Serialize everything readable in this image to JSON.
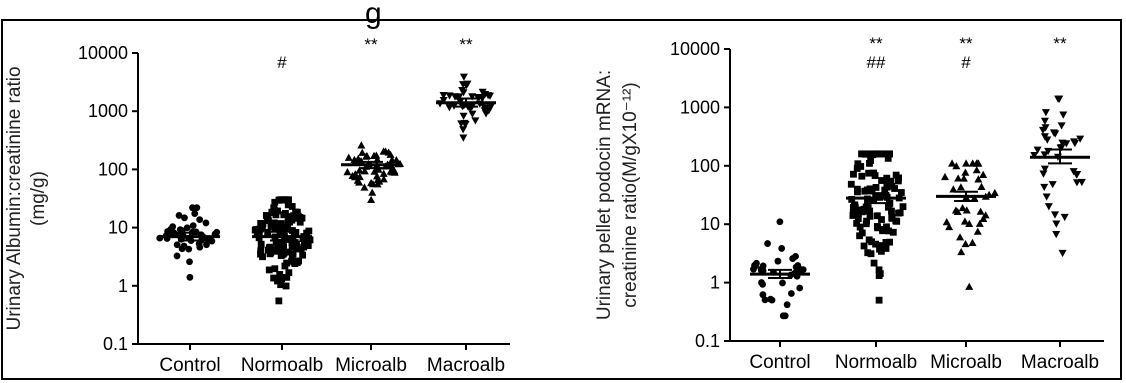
{
  "figure": {
    "partial_title": "g"
  },
  "chart_data": [
    {
      "type": "scatter",
      "subtype": "dot-plot",
      "ylabel_lines": [
        "Urinary Albumin:creatinine ratio",
        "(mg/g)"
      ],
      "yscale": "log",
      "ylim": [
        0.1,
        10000
      ],
      "yticks": [
        "0.1",
        "1",
        "10",
        "100",
        "1000",
        "10000"
      ],
      "categories": [
        "Control",
        "Normoalb",
        "Microalb",
        "Macroalb"
      ],
      "groups": [
        {
          "category": "Control",
          "marker": "circle",
          "mean": 7,
          "sem_low": 6,
          "sem_high": 8.2,
          "range": [
            1.4,
            22
          ],
          "n": 45,
          "annotations": []
        },
        {
          "category": "Normoalb",
          "marker": "square",
          "mean": 7,
          "sem_low": 6,
          "sem_high": 8.5,
          "range": [
            0.55,
            30
          ],
          "n": 140,
          "annotations": [
            "#"
          ]
        },
        {
          "category": "Microalb",
          "marker": "triangle",
          "mean": 120,
          "sem_low": 105,
          "sem_high": 135,
          "range": [
            30,
            260
          ],
          "n": 55,
          "annotations": [
            "**"
          ]
        },
        {
          "category": "Macroalb",
          "marker": "triangle-down",
          "mean": 1400,
          "sem_low": 1200,
          "sem_high": 1650,
          "range": [
            350,
            3900
          ],
          "n": 45,
          "annotations": [
            "**"
          ]
        }
      ]
    },
    {
      "type": "scatter",
      "subtype": "dot-plot",
      "ylabel_lines": [
        "Urinary pellet podocin mRNA:",
        "creatinine ratio(M/gX10⁻¹²)"
      ],
      "yscale": "log",
      "ylim": [
        0.1,
        10000
      ],
      "yticks": [
        "0.1",
        "1",
        "10",
        "100",
        "1000",
        "10000"
      ],
      "categories": [
        "Control",
        "Normoalb",
        "Microalb",
        "Macroalb"
      ],
      "groups": [
        {
          "category": "Control",
          "marker": "circle",
          "mean": 1.4,
          "sem_low": 1.2,
          "sem_high": 1.65,
          "range": [
            0.27,
            11
          ],
          "n": 35,
          "annotations": []
        },
        {
          "category": "Normoalb",
          "marker": "square",
          "mean": 28,
          "sem_low": 23,
          "sem_high": 34,
          "range": [
            0.5,
            160
          ],
          "n": 120,
          "annotations": [
            "**",
            "##"
          ]
        },
        {
          "category": "Microalb",
          "marker": "triangle",
          "mean": 30,
          "sem_low": 25,
          "sem_high": 36,
          "range": [
            0.85,
            110
          ],
          "n": 40,
          "annotations": [
            "**",
            "#"
          ]
        },
        {
          "category": "Macroalb",
          "marker": "triangle-down",
          "mean": 140,
          "sem_low": 110,
          "sem_high": 190,
          "range": [
            3.2,
            1400
          ],
          "n": 40,
          "annotations": [
            "**"
          ]
        }
      ]
    }
  ]
}
